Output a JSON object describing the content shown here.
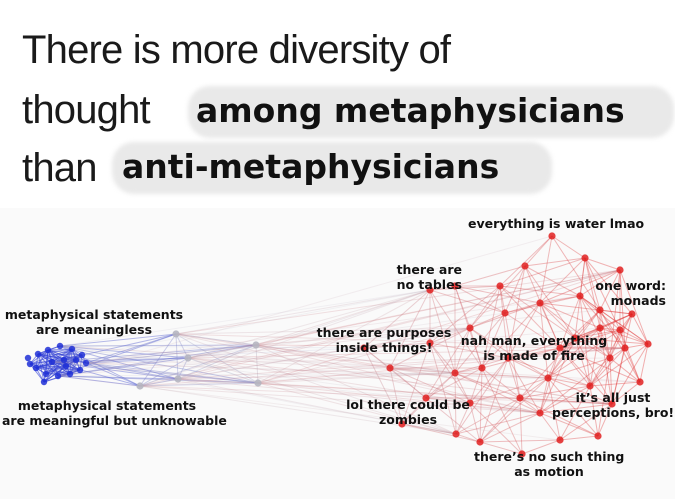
{
  "headline": {
    "line1": "There is more diversity of",
    "line2_plain": "thought",
    "line2_bold": "among metaphysicians",
    "line3_plain": "than",
    "line3_bold": "anti-metaphysicians"
  },
  "network": {
    "blue_color": "#1f2fd6",
    "red_color": "#e02020",
    "labels": {
      "meaningless": [
        "metaphysical statements",
        "are meaningless"
      ],
      "unknowable": [
        "metaphysical statements",
        "are meaningful but unknowable"
      ],
      "water": [
        "everything is water lmao"
      ],
      "tables": [
        "there are",
        "no tables"
      ],
      "monads": [
        "one word:",
        "monads"
      ],
      "purposes": [
        "there are purposes",
        "inside things!"
      ],
      "fire": [
        "nah man, everything",
        "is made of fire"
      ],
      "zombies": [
        "lol there could be",
        "zombies"
      ],
      "perceptions": [
        "it’s all just",
        "perceptions, bro!"
      ],
      "motion": [
        "there’s no such thing",
        "as motion"
      ]
    }
  }
}
